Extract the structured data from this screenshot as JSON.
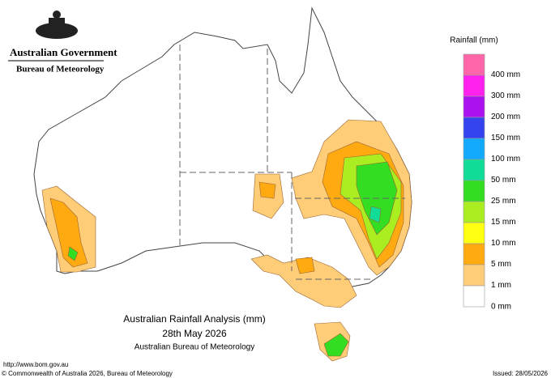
{
  "header": {
    "government": "Australian Government",
    "agency": "Bureau of Meteorology"
  },
  "legend": {
    "title": "Rainfall (mm)",
    "items": [
      {
        "label": null,
        "color": "#ff66aa"
      },
      {
        "label": "400 mm",
        "color": "#ff22ee"
      },
      {
        "label": "300 mm",
        "color": "#aa11ee"
      },
      {
        "label": "200 mm",
        "color": "#3344ee"
      },
      {
        "label": "150 mm",
        "color": "#11aaff"
      },
      {
        "label": "100 mm",
        "color": "#11dd99"
      },
      {
        "label": "50 mm",
        "color": "#33dd22"
      },
      {
        "label": "25 mm",
        "color": "#aaee22"
      },
      {
        "label": "15 mm",
        "color": "#ffff11"
      },
      {
        "label": "10 mm",
        "color": "#ffaa11"
      },
      {
        "label": "5 mm",
        "color": "#ffcc77"
      },
      {
        "label": "1 mm",
        "color": "#ffffff"
      }
    ],
    "bottom_label": "0 mm"
  },
  "map_title": {
    "line1": "Australian Rainfall Analysis (mm)",
    "line2": "28th May 2026",
    "line3": "Australian Bureau of Meteorology"
  },
  "footer": {
    "url": "http://www.bom.gov.au",
    "copyright": "© Commonwealth of Australia 2026, Bureau of Meteorology",
    "issued": "Issued: 28/05/2026"
  }
}
